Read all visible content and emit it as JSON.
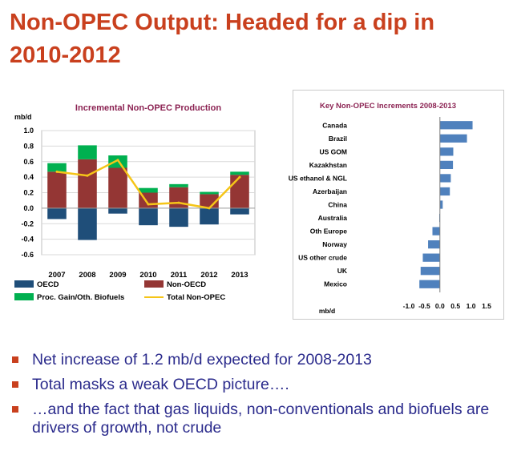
{
  "title": {
    "line1": "Non-OPEC Output: Headed for a dip in",
    "line2": "2010-2012",
    "color": "#c9401e"
  },
  "chart_data": [
    {
      "type": "bar",
      "stacked": true,
      "title": "Incremental Non-OPEC Production",
      "unit_label": "mb/d",
      "categories": [
        "2007",
        "2008",
        "2009",
        "2010",
        "2011",
        "2012",
        "2013"
      ],
      "ylim": [
        -0.6,
        1.0
      ],
      "yticks": [
        "1.0",
        "0.8",
        "0.6",
        "0.4",
        "0.2",
        "0.0",
        "-0.2",
        "-0.4",
        "-0.6"
      ],
      "grid": true,
      "series": [
        {
          "name": "OECD",
          "type": "bar",
          "color": "#1f4e79",
          "values": [
            -0.14,
            -0.41,
            -0.07,
            -0.22,
            -0.24,
            -0.21,
            -0.08
          ]
        },
        {
          "name": "Non-OECD",
          "type": "bar",
          "color": "#943634",
          "values": [
            0.47,
            0.63,
            0.52,
            0.2,
            0.27,
            0.18,
            0.43
          ]
        },
        {
          "name": "Proc. Gain/Oth. Biofuels",
          "type": "bar",
          "color": "#00b050",
          "values": [
            0.11,
            0.18,
            0.16,
            0.06,
            0.04,
            0.03,
            0.04
          ]
        },
        {
          "name": "Total Non-OPEC",
          "type": "line",
          "color": "#f5c518",
          "values": [
            0.47,
            0.42,
            0.62,
            0.05,
            0.07,
            0.0,
            0.4
          ]
        }
      ],
      "legend": [
        "OECD",
        "Non-OECD",
        "Proc. Gain/Oth. Biofuels",
        "Total Non-OPEC"
      ],
      "legend_position": "bottom"
    },
    {
      "type": "bar",
      "orientation": "horizontal",
      "title": "Key Non-OPEC Increments 2008-2013",
      "xlabel": "mb/d",
      "categories": [
        "Canada",
        "Brazil",
        "US GOM",
        "Kazakhstan",
        "US ethanol & NGL",
        "Azerbaijan",
        "China",
        "Australia",
        "Oth Europe",
        "Norway",
        "US other crude",
        "UK",
        "Mexico"
      ],
      "values": [
        1.05,
        0.87,
        0.43,
        0.42,
        0.35,
        0.32,
        0.09,
        -0.02,
        -0.24,
        -0.38,
        -0.55,
        -0.62,
        -0.66
      ],
      "xlim": [
        -1.0,
        1.5
      ],
      "xticks": [
        "-1.0",
        "-0.5",
        "0.0",
        "0.5",
        "1.0",
        "1.5"
      ],
      "color": "#4f81bd"
    }
  ],
  "bullets": [
    "Net increase of 1.2 mb/d expected for 2008-2013",
    "Total masks a weak OECD picture….",
    "…and the fact that gas liquids, non-conventionals and biofuels are drivers of growth, not crude"
  ],
  "colors": {
    "bullet_text": "#2b2b8c",
    "bullet_mark": "#c9401e",
    "chart_title": "#8b2252"
  }
}
